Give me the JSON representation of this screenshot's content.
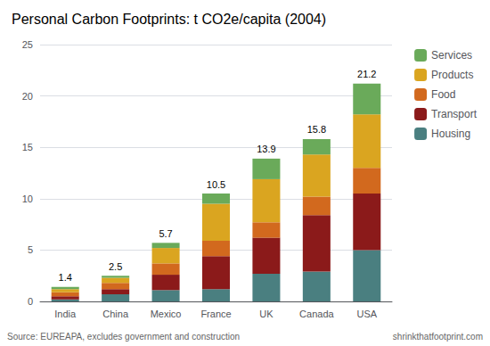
{
  "chart_data": {
    "type": "bar",
    "stacked": true,
    "title": "Personal Carbon Footprints: t CO2e/capita (2004)",
    "annotations": [
      "Source: EUREAPA, excludes government and construction",
      "shrinkthatfootprint.com"
    ],
    "categories": [
      "India",
      "China",
      "Mexico",
      "France",
      "UK",
      "Canada",
      "USA"
    ],
    "series": [
      {
        "name": "Housing",
        "color": "#4a7f80",
        "values": [
          0.2,
          0.7,
          1.1,
          1.2,
          2.7,
          2.9,
          5.0
        ]
      },
      {
        "name": "Transport",
        "color": "#8b1a1a",
        "values": [
          0.3,
          0.5,
          1.5,
          3.2,
          3.5,
          5.5,
          5.5
        ]
      },
      {
        "name": "Food",
        "color": "#d2691e",
        "values": [
          0.4,
          0.6,
          1.1,
          1.5,
          1.5,
          1.8,
          2.5
        ]
      },
      {
        "name": "Products",
        "color": "#daa520",
        "values": [
          0.3,
          0.5,
          1.5,
          3.6,
          4.2,
          4.1,
          5.2
        ]
      },
      {
        "name": "Services",
        "color": "#6aaa5a",
        "values": [
          0.2,
          0.2,
          0.5,
          1.0,
          2.0,
          1.5,
          3.0
        ]
      }
    ],
    "totals": [
      1.4,
      2.5,
      5.7,
      10.5,
      13.9,
      15.8,
      21.2
    ],
    "ylim": [
      0,
      25
    ],
    "yticks": [
      0,
      5,
      10,
      15,
      20,
      25
    ],
    "grid": true,
    "legend": "right"
  }
}
